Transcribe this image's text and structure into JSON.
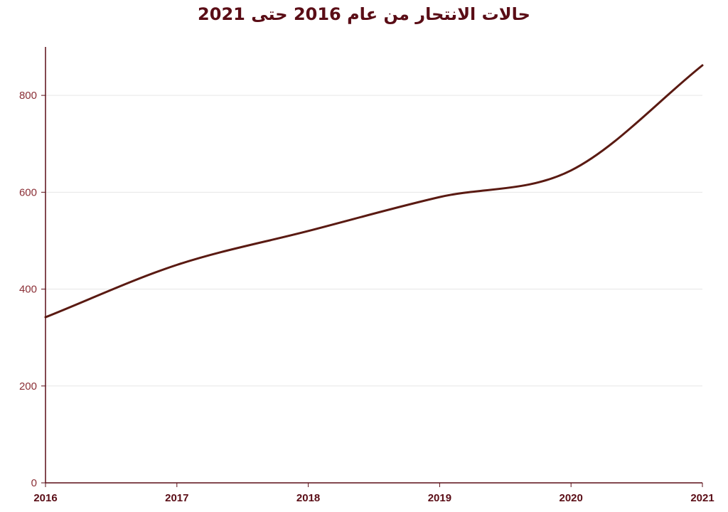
{
  "chart_data": {
    "type": "line",
    "title": "حالات الانتحار من عام 2016 حتى 2021",
    "xlabel": "",
    "ylabel": "",
    "x": [
      "2016",
      "2017",
      "2018",
      "2019",
      "2020",
      "2021"
    ],
    "series": [
      {
        "values": [
          342,
          450,
          520,
          590,
          645,
          862
        ]
      }
    ],
    "xlim": [
      2016,
      2021
    ],
    "ylim": [
      0,
      900
    ],
    "yticks": [
      0,
      200,
      400,
      600,
      800
    ],
    "ytick_labels": [
      "0",
      "200",
      "400",
      "600",
      "800"
    ],
    "xtick_labels": [
      "2016",
      "2017",
      "2018",
      "2019",
      "2020",
      "2021"
    ],
    "grid": "horizontal",
    "legend": "none",
    "colors": {
      "line": "#5a1a12",
      "axis": "#5a0d16",
      "grid": "#e6e6e6",
      "title": "#5a0d16",
      "ytick_text": "#8a2e35",
      "xtick_text": "#5a0d16"
    }
  }
}
